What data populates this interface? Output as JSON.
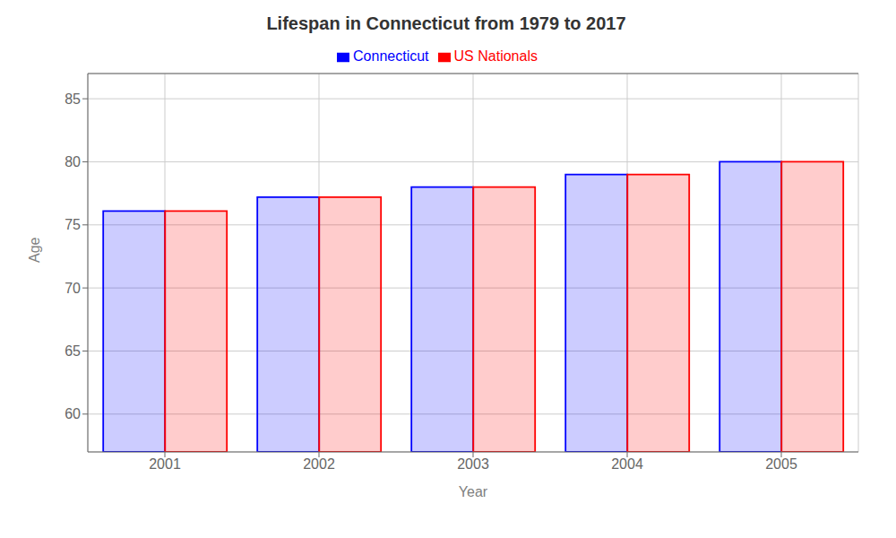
{
  "chart_data": {
    "type": "bar",
    "title": "Lifespan in Connecticut from 1979 to 2017",
    "x_label": "Year",
    "y_label": "Age",
    "categories": [
      "2001",
      "2002",
      "2003",
      "2004",
      "2005"
    ],
    "series": [
      {
        "name": "Connecticut",
        "color": "#0000ff",
        "values": [
          76.1,
          77.2,
          78.0,
          79.0,
          80.0
        ]
      },
      {
        "name": "US Nationals",
        "color": "#ff0000",
        "values": [
          76.1,
          77.2,
          78.0,
          79.0,
          80.0
        ]
      }
    ],
    "ylim": [
      57,
      87
    ],
    "yticks": [
      60,
      65,
      70,
      75,
      80,
      85
    ],
    "grid": true,
    "legend": "top"
  }
}
